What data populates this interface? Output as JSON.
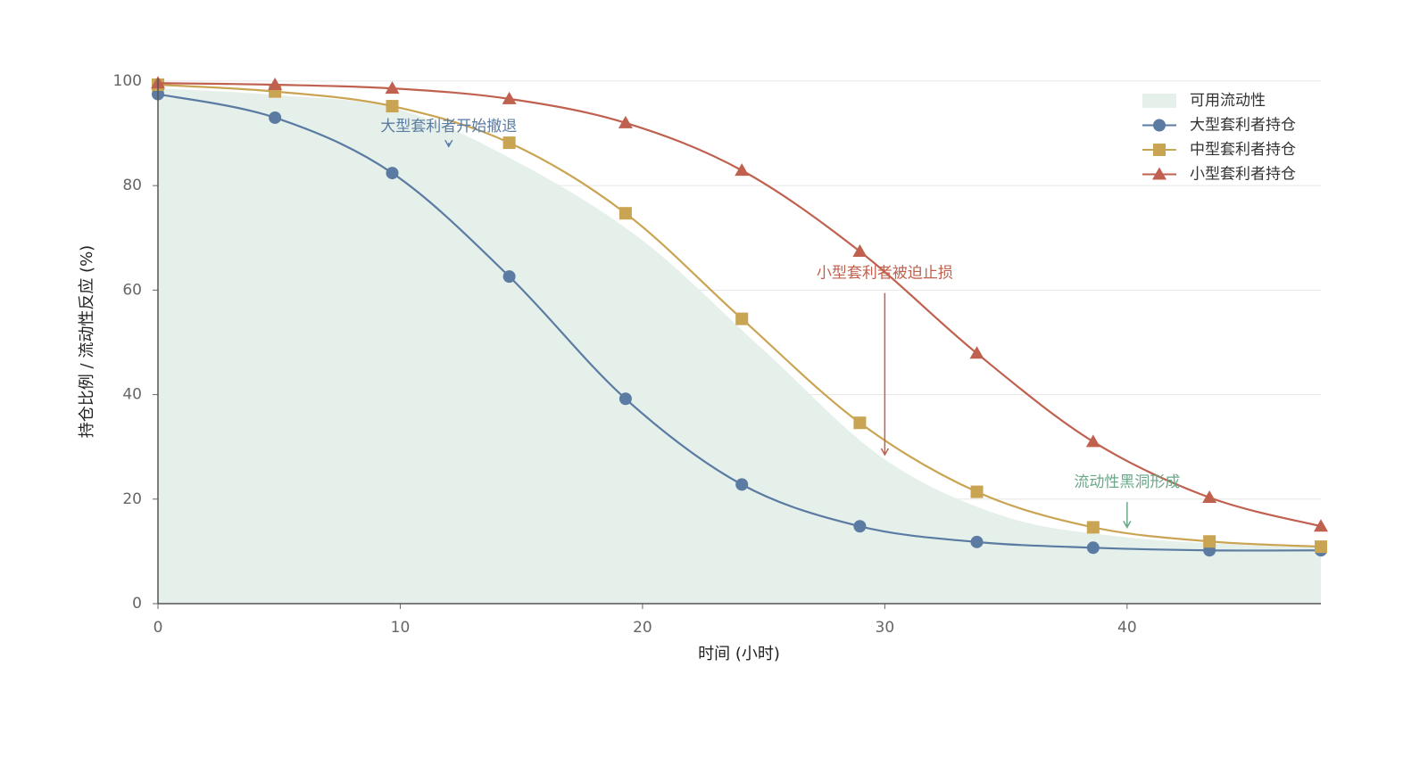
{
  "chart_data": {
    "type": "line",
    "xlabel": "时间 (小时)",
    "ylabel": "持仓比例 / 流动性反应 (%)",
    "xlim": [
      0,
      48
    ],
    "ylim": [
      0,
      100.5
    ],
    "xticks": [
      0,
      10,
      20,
      30,
      40
    ],
    "yticks": [
      0,
      20,
      40,
      60,
      80,
      100
    ],
    "grid": true,
    "legend": "upper right",
    "series": [
      {
        "name": "可用流动性",
        "style": "area",
        "color": "#e4f0e9",
        "x": [
          0,
          5,
          10,
          15,
          20,
          25,
          30,
          35,
          40,
          45,
          48
        ],
        "values": [
          98.6,
          97.3,
          94.5,
          84.1,
          69.5,
          48.5,
          27.6,
          16.6,
          12.7,
          11.2,
          10.7
        ]
      },
      {
        "name": "大型套利者持仓",
        "style": "line",
        "marker": "circle",
        "color": "#5b7ba3",
        "x": [
          0,
          4.83,
          9.67,
          14.5,
          19.3,
          24.1,
          28.97,
          33.8,
          38.6,
          43.4,
          48
        ],
        "values": [
          97.5,
          93.0,
          82.4,
          62.6,
          39.2,
          22.8,
          14.8,
          11.8,
          10.7,
          10.2,
          10.2
        ]
      },
      {
        "name": "中型套利者持仓",
        "style": "line",
        "marker": "square",
        "color": "#c9a452",
        "x": [
          0,
          4.83,
          9.67,
          14.5,
          19.3,
          24.1,
          28.97,
          33.8,
          38.6,
          43.4,
          48
        ],
        "values": [
          99.3,
          98.0,
          95.2,
          88.2,
          74.7,
          54.5,
          34.6,
          21.4,
          14.6,
          11.9,
          10.9
        ]
      },
      {
        "name": "小型套利者持仓",
        "style": "line",
        "marker": "triangle",
        "color": "#c0614f",
        "x": [
          0,
          4.83,
          9.67,
          14.5,
          19.3,
          24.1,
          28.97,
          33.8,
          38.6,
          43.4,
          48
        ],
        "values": [
          99.6,
          99.3,
          98.6,
          96.6,
          92.0,
          82.9,
          67.4,
          47.9,
          31.0,
          20.3,
          14.8
        ]
      }
    ],
    "annotations": [
      {
        "text": "大型套利者开始撤退",
        "color": "#5b7ba3",
        "xy": [
          12,
          87.5
        ],
        "xytext": [
          12,
          91.3
        ]
      },
      {
        "text": "小型套利者被迫止损",
        "color": "#c0614f",
        "xy": [
          30,
          28.5
        ],
        "xytext": [
          30,
          63.2
        ]
      },
      {
        "text": "流动性黑洞形成",
        "color": "#6aa889",
        "xy": [
          40,
          14.6
        ],
        "xytext": [
          40,
          23.2
        ]
      }
    ]
  }
}
